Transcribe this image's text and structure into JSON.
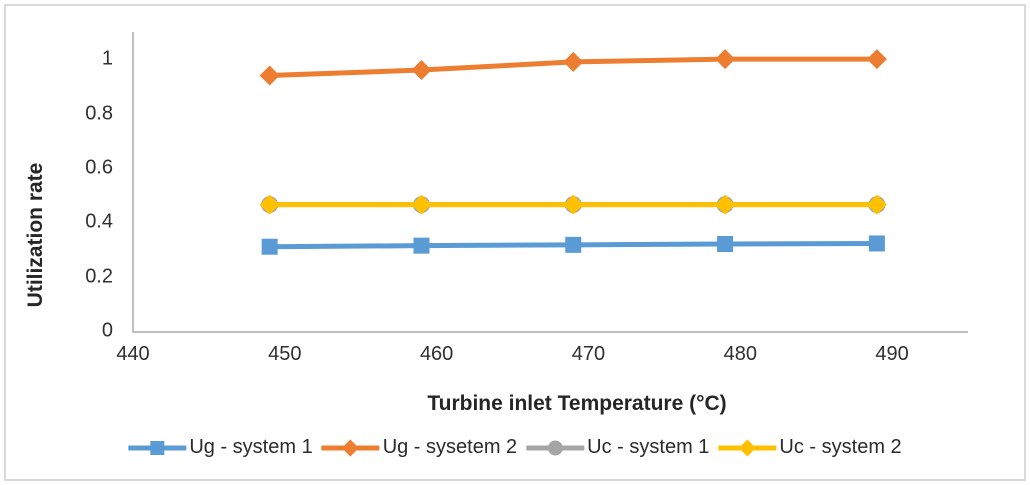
{
  "figure": {
    "background_color": "#ffffff",
    "border_color": "#d9d9d9"
  },
  "chart_data": {
    "type": "line",
    "title": "",
    "xlabel": "Turbine inlet Temperature (°C)",
    "ylabel": "Utilization rate",
    "grid": false,
    "legend_position": "bottom",
    "axis_color": "#bfbfbf",
    "xlim": [
      440,
      495
    ],
    "ylim": [
      0,
      1.1
    ],
    "xticks": [
      "440",
      "450",
      "460",
      "470",
      "480",
      "490"
    ],
    "xtick_values": [
      440,
      450,
      460,
      470,
      480,
      490
    ],
    "yticks": [
      "0",
      "0.2",
      "0.4",
      "0.6",
      "0.8",
      "1"
    ],
    "ytick_values": [
      0,
      0.2,
      0.4,
      0.6,
      0.8,
      1
    ],
    "x": [
      449,
      459,
      469,
      479,
      489
    ],
    "series": [
      {
        "name": "Ug - system 1",
        "color": "#5B9BD5",
        "marker": "square",
        "values": [
          0.31,
          0.314,
          0.317,
          0.32,
          0.322
        ]
      },
      {
        "name": "Ug - sysetem 2",
        "color": "#ED7D31",
        "marker": "diamond",
        "values": [
          0.94,
          0.96,
          0.99,
          1.0,
          1.0
        ]
      },
      {
        "name": "Uc - system 1",
        "color": "#A5A5A5",
        "marker": "circle",
        "values": [
          0.465,
          0.465,
          0.465,
          0.465,
          0.465
        ]
      },
      {
        "name": "Uc - system 2",
        "color": "#FFC000",
        "marker": "diamond",
        "values": [
          0.465,
          0.465,
          0.465,
          0.465,
          0.465
        ]
      }
    ]
  }
}
